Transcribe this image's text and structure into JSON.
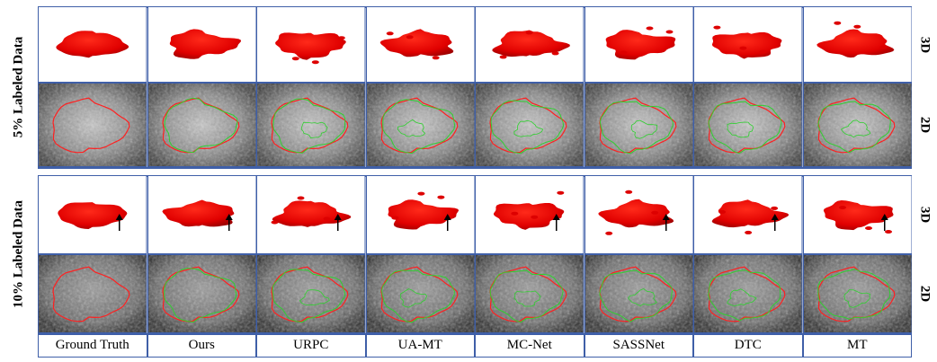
{
  "groups": [
    {
      "label": "5% Labeled Data",
      "rows": [
        "3D",
        "2D"
      ]
    },
    {
      "label": "10% Labeled Data",
      "rows": [
        "3D",
        "2D"
      ]
    }
  ],
  "columns": [
    "Ground Truth",
    "Ours",
    "URPC",
    "UA-MT",
    "MC-Net",
    "SASSNet",
    "DTC",
    "MT"
  ]
}
